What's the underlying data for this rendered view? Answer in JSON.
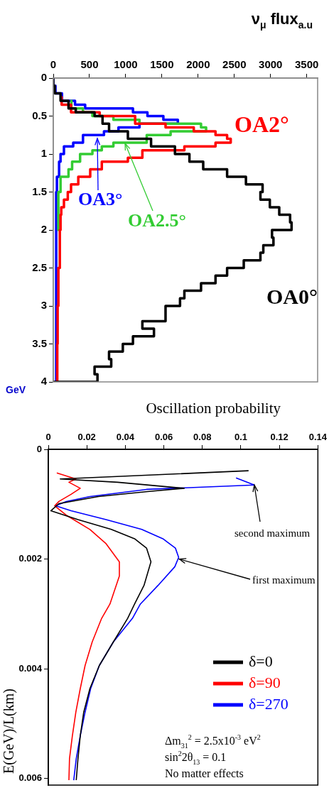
{
  "chart_data": [
    {
      "type": "line",
      "xlabel": "ν$_{μ}$ flux$_{a.u}$",
      "ylabel": "GeV",
      "xlim": [
        0,
        3650
      ],
      "xticks": [
        0,
        500,
        1000,
        1500,
        2000,
        2500,
        3000,
        3500
      ],
      "ylim": [
        4,
        0
      ],
      "yticks": [
        0,
        0.5,
        1,
        1.5,
        2,
        2.5,
        3,
        3.5,
        4
      ],
      "series": [
        {
          "name": "OA0°",
          "color": "#000000",
          "x": [
            0,
            0,
            20,
            20,
            100,
            100,
            210,
            210,
            310,
            310,
            570,
            570,
            680,
            680,
            770,
            770,
            1030,
            1030,
            1350,
            1350,
            1680,
            1680,
            1880,
            1880,
            2070,
            2070,
            2400,
            2400,
            2660,
            2660,
            2890,
            2890,
            2860,
            2860,
            2990,
            2990,
            3120,
            3120,
            3270,
            3270,
            3290,
            3290,
            3020,
            3020,
            3040,
            3040,
            2900,
            2900,
            2860,
            2860,
            2630,
            2630,
            2400,
            2400,
            2240,
            2240,
            2040,
            2040,
            1810,
            1810,
            1750,
            1750,
            1550,
            1550,
            1230,
            1230,
            1390,
            1390,
            1100,
            1100,
            960,
            960,
            770,
            770,
            800,
            800,
            570,
            570,
            610,
            610,
            0
          ],
          "values": [
            0,
            0.1,
            0.1,
            0.2,
            0.2,
            0.3,
            0.3,
            0.4,
            0.4,
            0.45,
            0.45,
            0.5,
            0.5,
            0.6,
            0.6,
            0.7,
            0.7,
            0.8,
            0.8,
            0.9,
            0.9,
            1.0,
            1.0,
            1.1,
            1.1,
            1.2,
            1.2,
            1.3,
            1.3,
            1.4,
            1.4,
            1.5,
            1.5,
            1.6,
            1.6,
            1.7,
            1.7,
            1.8,
            1.8,
            1.9,
            1.9,
            2.0,
            2.0,
            2.1,
            2.1,
            2.2,
            2.2,
            2.3,
            2.3,
            2.4,
            2.4,
            2.5,
            2.5,
            2.6,
            2.6,
            2.7,
            2.7,
            2.8,
            2.8,
            2.9,
            2.9,
            3.0,
            3.0,
            3.2,
            3.2,
            3.3,
            3.3,
            3.4,
            3.4,
            3.5,
            3.5,
            3.6,
            3.6,
            3.7,
            3.7,
            3.8,
            3.8,
            3.9,
            3.9,
            4.0,
            4.0
          ]
        },
        {
          "name": "OA2°",
          "color": "#ff0000",
          "x": [
            115,
            115,
            245,
            245,
            640,
            640,
            1130,
            1130,
            1550,
            1550,
            1940,
            1940,
            2240,
            2240,
            2400,
            2400,
            2450,
            2450,
            2240,
            2240,
            1810,
            1810,
            1230,
            1230,
            1030,
            1030,
            670,
            670,
            510,
            510,
            345,
            345,
            245,
            245,
            200,
            200,
            147,
            147,
            110,
            110,
            100,
            100,
            90,
            90,
            70,
            70,
            60,
            60,
            55,
            55
          ],
          "values": [
            0.25,
            0.35,
            0.35,
            0.45,
            0.45,
            0.5,
            0.5,
            0.6,
            0.6,
            0.65,
            0.65,
            0.7,
            0.7,
            0.75,
            0.75,
            0.8,
            0.8,
            0.85,
            0.85,
            0.9,
            0.9,
            0.95,
            0.95,
            1.05,
            1.05,
            1.1,
            1.1,
            1.2,
            1.2,
            1.3,
            1.3,
            1.4,
            1.4,
            1.5,
            1.5,
            1.6,
            1.6,
            1.7,
            1.7,
            1.8,
            1.8,
            2.0,
            2.0,
            2.5,
            2.5,
            3.0,
            3.0,
            3.5,
            3.5,
            4.0
          ]
        },
        {
          "name": "OA2.5°",
          "color": "#33cc33",
          "x": [
            250,
            250,
            410,
            410,
            540,
            540,
            830,
            830,
            1190,
            1190,
            2040,
            2040,
            2110,
            2110,
            1620,
            1620,
            1290,
            1290,
            830,
            830,
            670,
            670,
            540,
            540,
            370,
            370,
            260,
            260,
            210,
            210,
            100,
            100,
            70,
            70
          ],
          "values": [
            0.3,
            0.4,
            0.4,
            0.45,
            0.45,
            0.5,
            0.5,
            0.55,
            0.55,
            0.6,
            0.6,
            0.65,
            0.65,
            0.7,
            0.7,
            0.75,
            0.75,
            0.85,
            0.85,
            0.9,
            0.9,
            0.95,
            0.95,
            1.0,
            1.0,
            1.1,
            1.1,
            1.2,
            1.2,
            1.3,
            1.3,
            1.5,
            1.5,
            2.0
          ]
        },
        {
          "name": "OA3°",
          "color": "#0000ff",
          "x": [
            0,
            0,
            30,
            30,
            120,
            120,
            300,
            300,
            440,
            440,
            1100,
            1100,
            1300,
            1300,
            1520,
            1520,
            1720,
            1720,
            1190,
            1190,
            900,
            900,
            700,
            700,
            410,
            410,
            275,
            275,
            147,
            147,
            100,
            100,
            80,
            80,
            50,
            50,
            40,
            40
          ],
          "values": [
            0,
            0.1,
            0.1,
            0.2,
            0.2,
            0.3,
            0.3,
            0.35,
            0.35,
            0.4,
            0.4,
            0.45,
            0.45,
            0.5,
            0.5,
            0.55,
            0.55,
            0.6,
            0.6,
            0.65,
            0.65,
            0.7,
            0.7,
            0.75,
            0.75,
            0.85,
            0.85,
            0.9,
            0.9,
            1.0,
            1.0,
            1.1,
            1.1,
            1.3,
            1.3,
            1.5,
            1.5,
            4.0
          ]
        }
      ]
    },
    {
      "type": "line",
      "xlabel": "Oscillation probability",
      "ylabel": "E(GeV)/L(km)",
      "xlim": [
        0,
        0.14
      ],
      "xticks": [
        0,
        0.02,
        0.04,
        0.06,
        0.08,
        0.1,
        0.12,
        0.14
      ],
      "ylim": [
        0.00612,
        0
      ],
      "yticks": [
        0,
        0.002,
        0.004,
        0.006
      ],
      "legend": "right",
      "annotations": [
        {
          "text": "second maximum",
          "x": 0.107,
          "y": 0.00065
        },
        {
          "text": "first maximum",
          "x": 0.068,
          "y": 0.002
        },
        "Δm$_{31}$$^{2}$ = 2.5x10$^{-3}$ eV$^{2}$",
        "sin$^{2}$2θ$_{13}$ = 0.1",
        "No matter effects"
      ],
      "series": [
        {
          "name": "δ=0",
          "color": "#000000",
          "x": [
            0.104,
            0.0062,
            0.036,
            0.0706,
            0.0515,
            0.026,
            0.0055,
            0.0013,
            0.0154,
            0.0327,
            0.0448,
            0.051,
            0.0533,
            0.0497,
            0.0448,
            0.0412,
            0.0338,
            0.0265,
            0.0216,
            0.0184,
            0.0166,
            0.0154,
            0.0145
          ],
          "values": [
            0.00039,
            0.00054,
            0.0006,
            0.00071,
            0.00077,
            0.00086,
            0.00099,
            0.00112,
            0.00128,
            0.00146,
            0.00163,
            0.0018,
            0.00205,
            0.00248,
            0.00282,
            0.00308,
            0.00351,
            0.00394,
            0.00436,
            0.00479,
            0.00522,
            0.00564,
            0.00603
          ]
        },
        {
          "name": "δ=90",
          "color": "#ff0000",
          "x": [
            0.0044,
            0.0143,
            0.0107,
            0.0166,
            0.0118,
            0.0055,
            0.0033,
            0.0093,
            0.0216,
            0.03,
            0.0369,
            0.0369,
            0.032,
            0.0277,
            0.0228,
            0.0191,
            0.0166,
            0.0143,
            0.0125,
            0.011,
            0.0107
          ],
          "values": [
            0.00043,
            0.00054,
            0.0006,
            0.00071,
            0.00082,
            0.00095,
            0.00103,
            0.0012,
            0.00146,
            0.00172,
            0.00205,
            0.00231,
            0.00282,
            0.00308,
            0.00351,
            0.00394,
            0.00436,
            0.00479,
            0.00522,
            0.00564,
            0.00603
          ]
        },
        {
          "name": "δ=270",
          "color": "#0000ff",
          "x": [
            0.0975,
            0.107,
            0.051,
            0.0216,
            0.0093,
            0.0038,
            0.0118,
            0.03,
            0.0485,
            0.0595,
            0.066,
            0.0677,
            0.0657,
            0.057,
            0.0478,
            0.0437,
            0.0338,
            0.0265,
            0.022,
            0.0191,
            0.0166,
            0.0145,
            0.0132
          ],
          "values": [
            0.00052,
            0.00065,
            0.00073,
            0.00086,
            0.00095,
            0.00103,
            0.00112,
            0.00128,
            0.00146,
            0.00163,
            0.0018,
            0.00197,
            0.00214,
            0.00248,
            0.00282,
            0.00308,
            0.00351,
            0.00394,
            0.00436,
            0.00479,
            0.00522,
            0.00564,
            0.00603
          ]
        }
      ]
    }
  ]
}
